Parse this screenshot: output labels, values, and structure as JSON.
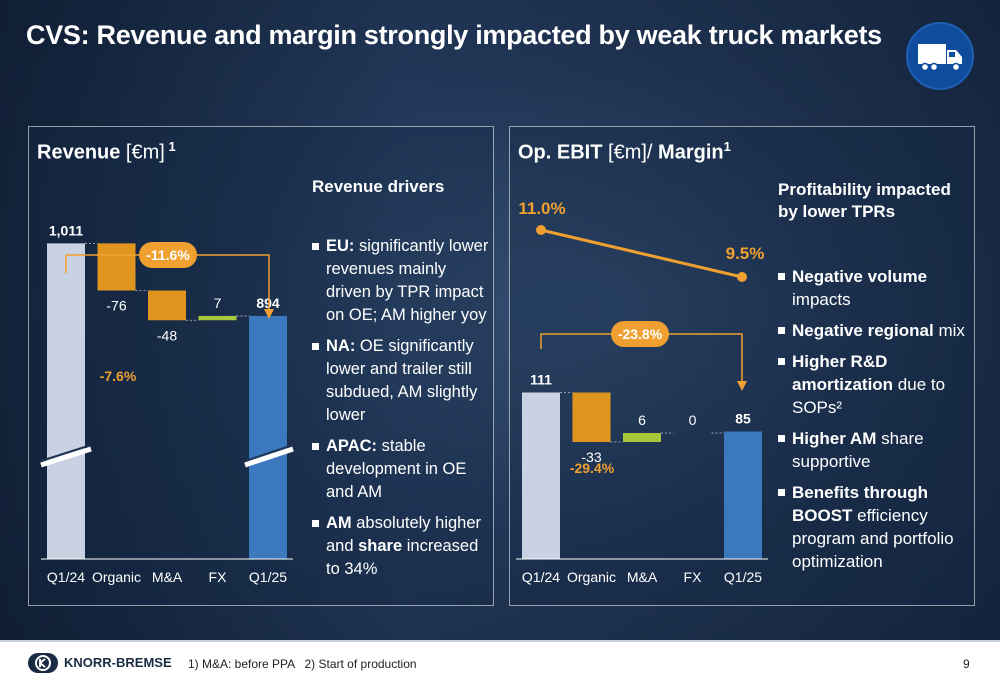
{
  "title": "CVS: Revenue and margin strongly impacted by weak truck markets",
  "icons": {
    "truck": "truck-icon",
    "logo": "knorr-bremse-logo"
  },
  "colors": {
    "base_bar": "#c8d2e2",
    "negative": "#e0961e",
    "positive": "#a6c83a",
    "end_bar": "#3c78be",
    "accent": "#f0a030"
  },
  "revenue_panel": {
    "title_bold": "Revenue",
    "title_unit": " [€m]",
    "title_sup": " 1",
    "drivers_heading": "Revenue drivers",
    "bullets": [
      {
        "bold": "EU:",
        "text": " significantly lower revenues mainly driven by TPR impact on OE; AM higher yoy"
      },
      {
        "bold": "NA:",
        "text": " OE significantly lower and trailer still subdued, AM slightly lower"
      },
      {
        "bold": "APAC:",
        "text": " stable development in OE and AM"
      },
      {
        "bold": "AM",
        "text": " absolutely higher and ",
        "bold2": "share",
        "text2": " increased to 34%"
      }
    ],
    "change_badge": "-11.6%",
    "organic_pct": "-7.6%"
  },
  "ebit_panel": {
    "title_bold": "Op. EBIT",
    "title_unit": " [€m]/ ",
    "title_bold2": "Margin",
    "title_sup": "1",
    "drivers_heading_line1": "Profitability impacted",
    "drivers_heading_line2": "by lower TPRs",
    "bullets": [
      {
        "bold": "Negative volume",
        "text": " impacts"
      },
      {
        "bold": "Negative regional",
        "text": " mix"
      },
      {
        "bold": "Higher R&D amortization",
        "text": " due to SOPs²"
      },
      {
        "bold": "Higher AM",
        "text": " share supportive"
      },
      {
        "bold": "Benefits through BOOST",
        "text": " efficiency program and portfolio optimization"
      }
    ],
    "change_badge": "-23.8%",
    "organic_pct": "-29.4%",
    "margin_labels": [
      "11.0%",
      "9.5%"
    ]
  },
  "chart_data": [
    {
      "type": "bar",
      "title": "Revenue [€m] 1",
      "categories": [
        "Q1/24",
        "Organic",
        "M&A",
        "FX",
        "Q1/25"
      ],
      "values": [
        1011,
        -76,
        -48,
        7,
        894
      ],
      "value_labels": [
        "1,011",
        "-76",
        "-48",
        "7",
        "894"
      ],
      "annotations": [
        "-11.6%",
        "-7.6%"
      ]
    },
    {
      "type": "bar",
      "title": "Op. EBIT [€m]/ Margin1",
      "categories": [
        "Q1/24",
        "Organic",
        "M&A",
        "FX",
        "Q1/25"
      ],
      "values": [
        111,
        -33,
        6,
        0,
        85
      ],
      "value_labels": [
        "111",
        "-33",
        "6",
        "0",
        "85"
      ],
      "annotations": [
        "-23.8%",
        "-29.4%"
      ],
      "margin_series": {
        "x": [
          "Q1/24",
          "Q1/25"
        ],
        "values": [
          11.0,
          9.5
        ]
      }
    }
  ],
  "footer": {
    "company": "KNORR-BREMSE",
    "note": "1) M&A: before PPA   2) Start of production",
    "page": "9"
  }
}
